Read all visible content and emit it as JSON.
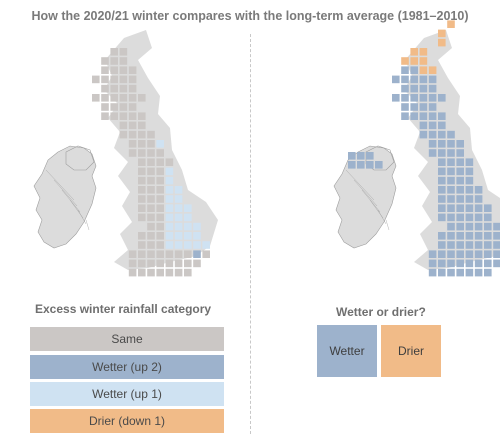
{
  "title": "How the 2020/21 winter compares with the long-term average (1981–2010)",
  "colors": {
    "same": "#cbc7c5",
    "wetter_up2": "#9db2cc",
    "wetter_up1": "#cfe2f2",
    "drier": "#f1bb88",
    "land": "#dcdcdc",
    "boundary": "#9e9e9e"
  },
  "left_panel": {
    "legend_title": "Excess winter rainfall category",
    "legend": [
      {
        "label": "Same",
        "category": "same"
      },
      {
        "label": "Wetter (up 2)",
        "category": "wetter_up2"
      },
      {
        "label": "Wetter (up 1)",
        "category": "wetter_up1"
      },
      {
        "label": "Drier (down 1)",
        "category": "drier"
      }
    ]
  },
  "right_panel": {
    "legend_title": "Wetter or drier?",
    "legend": [
      {
        "label": "Wetter",
        "category": "wetter"
      },
      {
        "label": "Drier",
        "category": "drier"
      }
    ]
  }
}
